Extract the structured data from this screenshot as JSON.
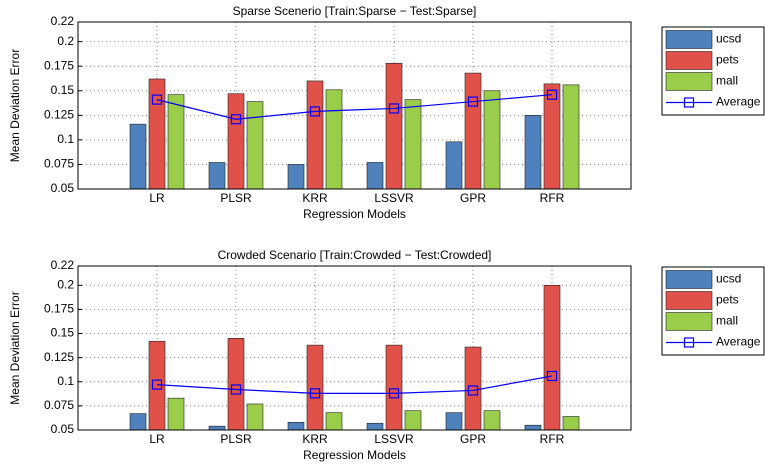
{
  "chart_data": [
    {
      "type": "bar",
      "title": "Sparse Scenerio [Train:Sparse − Test:Sparse]",
      "x_label": "Regression Models",
      "y_label": "Mean Deviation Error",
      "categories": [
        "LR",
        "PLSR",
        "KRR",
        "LSSVR",
        "GPR",
        "RFR"
      ],
      "series": [
        {
          "name": "ucsd",
          "color": "#4f81bd",
          "values": [
            0.116,
            0.077,
            0.075,
            0.077,
            0.098,
            0.125
          ]
        },
        {
          "name": "pets",
          "color": "#e0514a",
          "values": [
            0.162,
            0.147,
            0.16,
            0.178,
            0.168,
            0.157
          ]
        },
        {
          "name": "mall",
          "color": "#9acd4a",
          "values": [
            0.146,
            0.139,
            0.151,
            0.141,
            0.15,
            0.156
          ]
        },
        {
          "name": "Average",
          "color": "#0000ff",
          "type": "line",
          "values": [
            0.141,
            0.121,
            0.129,
            0.132,
            0.139,
            0.146
          ]
        }
      ],
      "ylim": [
        0.05,
        0.22
      ],
      "yticks": [
        0.05,
        0.075,
        0.1,
        0.125,
        0.15,
        0.175,
        0.2,
        0.22
      ],
      "grid": true,
      "legend": "outside right"
    },
    {
      "type": "bar",
      "title": "Crowded Scenario [Train:Crowded − Test:Crowded]",
      "x_label": "Regression Models",
      "y_label": "Mean Deviation Error",
      "categories": [
        "LR",
        "PLSR",
        "KRR",
        "LSSVR",
        "GPR",
        "RFR"
      ],
      "series": [
        {
          "name": "ucsd",
          "color": "#4f81bd",
          "values": [
            0.067,
            0.054,
            0.058,
            0.057,
            0.068,
            0.055
          ]
        },
        {
          "name": "pets",
          "color": "#e0514a",
          "values": [
            0.142,
            0.145,
            0.138,
            0.138,
            0.136,
            0.2
          ]
        },
        {
          "name": "mall",
          "color": "#9acd4a",
          "values": [
            0.083,
            0.077,
            0.068,
            0.07,
            0.07,
            0.064
          ]
        },
        {
          "name": "Average",
          "color": "#0000ff",
          "type": "line",
          "values": [
            0.097,
            0.092,
            0.088,
            0.088,
            0.091,
            0.106
          ]
        }
      ],
      "ylim": [
        0.05,
        0.22
      ],
      "yticks": [
        0.05,
        0.075,
        0.1,
        0.125,
        0.15,
        0.175,
        0.2,
        0.22
      ],
      "grid": true,
      "legend": "outside right"
    }
  ]
}
